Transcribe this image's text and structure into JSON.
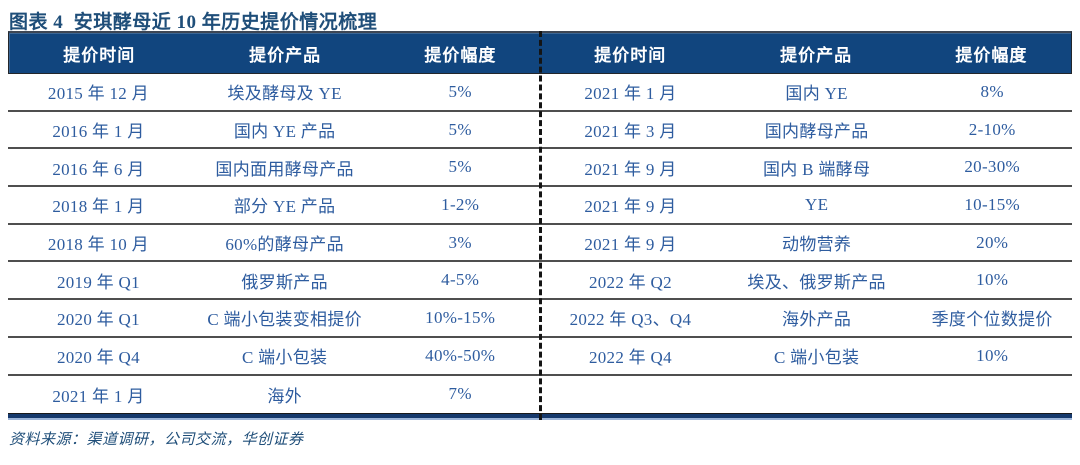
{
  "title": "图表 4  安琪酵母近 10 年历史提价情况梳理",
  "colors": {
    "header_bg": "#11457E",
    "header_text": "#FFFFFF",
    "cell_text": "#2E5C9F",
    "title_text": "#1F4E79",
    "row_separator": "#4F4F4F",
    "bottom_border": "#16396C",
    "divider_dash": "#141414"
  },
  "table": {
    "columns": [
      "提价时间",
      "提价产品",
      "提价幅度"
    ],
    "left": {
      "rows": [
        {
          "time": "2015 年 12 月",
          "product": "埃及酵母及 YE",
          "magnitude": "5%"
        },
        {
          "time": "2016 年 1 月",
          "product": "国内 YE 产品",
          "magnitude": "5%"
        },
        {
          "time": "2016 年 6 月",
          "product": "国内面用酵母产品",
          "magnitude": "5%"
        },
        {
          "time": "2018 年 1 月",
          "product": "部分 YE 产品",
          "magnitude": "1-2%"
        },
        {
          "time": "2018 年 10 月",
          "product": "60%的酵母产品",
          "magnitude": "3%"
        },
        {
          "time": "2019 年 Q1",
          "product": "俄罗斯产品",
          "magnitude": "4-5%"
        },
        {
          "time": "2020 年 Q1",
          "product": "C 端小包装变相提价",
          "magnitude": "10%-15%"
        },
        {
          "time": "2020 年 Q4",
          "product": "C 端小包装",
          "magnitude": "40%-50%"
        },
        {
          "time": "2021 年 1 月",
          "product": "海外",
          "magnitude": "7%"
        }
      ]
    },
    "right": {
      "rows": [
        {
          "time": "2021 年 1 月",
          "product": "国内 YE",
          "magnitude": "8%"
        },
        {
          "time": "2021 年 3 月",
          "product": "国内酵母产品",
          "magnitude": "2-10%"
        },
        {
          "time": "2021 年 9 月",
          "product": "国内 B 端酵母",
          "magnitude": "20-30%"
        },
        {
          "time": "2021 年 9 月",
          "product": "YE",
          "magnitude": "10-15%"
        },
        {
          "time": "2021 年 9 月",
          "product": "动物营养",
          "magnitude": "20%"
        },
        {
          "time": "2022 年 Q2",
          "product": "埃及、俄罗斯产品",
          "magnitude": "10%"
        },
        {
          "time": "2022 年 Q3、Q4",
          "product": "海外产品",
          "magnitude": "季度个位数提价"
        },
        {
          "time": "2022 年 Q4",
          "product": "C 端小包装",
          "magnitude": "10%"
        },
        {
          "time": "",
          "product": "",
          "magnitude": ""
        }
      ]
    }
  },
  "footer": {
    "source": "资料来源：渠道调研，公司交流，华创证券"
  }
}
